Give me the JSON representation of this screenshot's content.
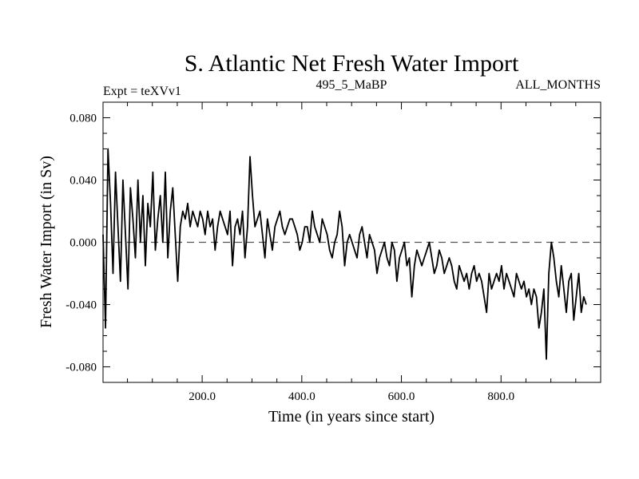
{
  "chart_data": {
    "type": "line",
    "title": "S. Atlantic Net Fresh Water Import",
    "subtitle_left": "Expt = teXVv1",
    "subtitle_center": "495_5_MaBP",
    "subtitle_right": "ALL_MONTHS",
    "xlabel": "Time (in years since start)",
    "ylabel": "Fresh Water Import (in Sv)",
    "xlim": [
      1,
      1000
    ],
    "ylim": [
      -0.09,
      0.09
    ],
    "x_ticks": [
      200,
      400,
      600,
      800
    ],
    "x_tick_labels": [
      "200.0",
      "400.0",
      "600.0",
      "800.0"
    ],
    "y_ticks": [
      -0.08,
      -0.04,
      0.0,
      0.04,
      0.08
    ],
    "y_tick_labels": [
      "-0.080",
      "-0.040",
      "0.000",
      "0.040",
      "0.080"
    ],
    "reference_line": {
      "y": 0.0,
      "style": "dashed"
    },
    "grid": false,
    "series": [
      {
        "name": "Net Fresh Water Import",
        "x_start": 1,
        "x_step": 5,
        "values": [
          0.005,
          -0.055,
          0.06,
          0.025,
          -0.02,
          0.045,
          0.01,
          -0.025,
          0.04,
          0.005,
          -0.03,
          0.035,
          0.015,
          -0.01,
          0.04,
          0.0,
          0.03,
          -0.015,
          0.025,
          0.01,
          0.045,
          -0.005,
          0.015,
          0.03,
          0.0,
          0.045,
          -0.01,
          0.02,
          0.035,
          0.005,
          -0.025,
          0.01,
          0.02,
          0.015,
          0.025,
          0.01,
          0.02,
          0.015,
          0.01,
          0.02,
          0.015,
          0.005,
          0.02,
          0.01,
          0.015,
          -0.005,
          0.01,
          0.02,
          0.015,
          0.01,
          0.005,
          0.02,
          -0.015,
          0.01,
          0.015,
          0.005,
          0.02,
          -0.01,
          0.01,
          0.055,
          0.03,
          0.01,
          0.015,
          0.02,
          0.005,
          -0.01,
          0.015,
          0.005,
          -0.005,
          0.01,
          0.015,
          0.02,
          0.01,
          0.005,
          0.01,
          0.015,
          0.015,
          0.01,
          0.005,
          -0.005,
          0.0,
          0.01,
          0.01,
          0.0,
          0.02,
          0.01,
          0.005,
          0.0,
          0.015,
          0.01,
          0.005,
          -0.005,
          -0.01,
          0.0,
          0.005,
          0.02,
          0.01,
          -0.015,
          0.0,
          0.005,
          0.0,
          -0.005,
          -0.01,
          0.005,
          0.01,
          0.0,
          -0.01,
          0.005,
          0.0,
          -0.005,
          -0.02,
          -0.01,
          -0.005,
          0.0,
          -0.01,
          -0.015,
          0.0,
          -0.005,
          -0.025,
          -0.01,
          -0.005,
          0.0,
          -0.015,
          -0.01,
          -0.035,
          -0.015,
          -0.005,
          -0.01,
          -0.015,
          -0.01,
          -0.005,
          0.0,
          -0.01,
          -0.02,
          -0.015,
          -0.005,
          -0.01,
          -0.02,
          -0.015,
          -0.01,
          -0.015,
          -0.025,
          -0.03,
          -0.015,
          -0.02,
          -0.025,
          -0.02,
          -0.03,
          -0.02,
          -0.015,
          -0.025,
          -0.02,
          -0.025,
          -0.035,
          -0.045,
          -0.02,
          -0.03,
          -0.025,
          -0.02,
          -0.025,
          -0.015,
          -0.03,
          -0.02,
          -0.025,
          -0.03,
          -0.035,
          -0.02,
          -0.025,
          -0.03,
          -0.025,
          -0.035,
          -0.03,
          -0.04,
          -0.03,
          -0.035,
          -0.055,
          -0.045,
          -0.03,
          -0.075,
          -0.02,
          0.0,
          -0.01,
          -0.025,
          -0.035,
          -0.015,
          -0.03,
          -0.045,
          -0.025,
          -0.02,
          -0.05,
          -0.035,
          -0.02,
          -0.045,
          -0.035,
          -0.04
        ]
      }
    ]
  }
}
